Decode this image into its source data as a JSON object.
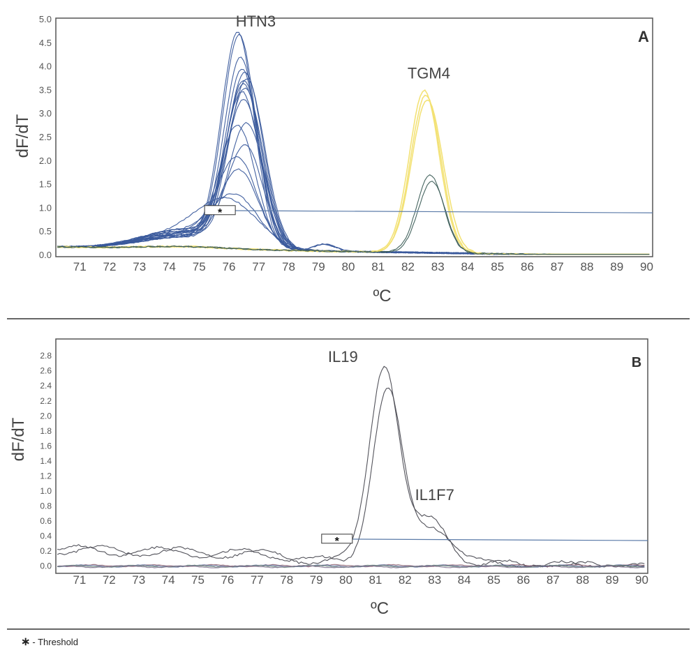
{
  "legend": {
    "symbol": "∗",
    "text": "- Threshold"
  },
  "chart_data": [
    {
      "type": "line",
      "panel_label": "A",
      "xlabel": "ºC",
      "ylabel": "dF/dT",
      "xlim": [
        70.2,
        90.2
      ],
      "ylim": [
        0,
        5.0
      ],
      "xticks": [
        71,
        72,
        73,
        74,
        75,
        76,
        77,
        78,
        79,
        80,
        81,
        82,
        83,
        84,
        85,
        86,
        87,
        88,
        89,
        90
      ],
      "yticks": [
        0.0,
        0.5,
        1.0,
        1.5,
        2.0,
        2.5,
        3.0,
        3.5,
        4.0,
        4.5,
        5.0
      ],
      "ytick_format": 1,
      "threshold": {
        "x_start": 75.2,
        "x_end": 90.2,
        "y_start": 0.95,
        "y_end": 0.9,
        "marker_x": 75.7,
        "marker": "*"
      },
      "annotations": [
        {
          "text": "HTN3",
          "x": 76.9,
          "y": 4.85
        },
        {
          "text": "TGM4",
          "x": 82.7,
          "y": 3.75
        }
      ],
      "colors": {
        "blue": "#3a5a9c",
        "yellow": "#f2e070",
        "teal": "#3d5e58"
      },
      "series": [
        {
          "group": "HTN3",
          "color": "blue",
          "peaks": [
            {
              "center": 76.3,
              "height": 4.5,
              "width": 0.55
            },
            {
              "center": 76.35,
              "height": 4.45,
              "width": 0.55
            },
            {
              "center": 76.4,
              "height": 3.95,
              "width": 0.55
            },
            {
              "center": 76.45,
              "height": 3.7,
              "width": 0.55
            },
            {
              "center": 76.55,
              "height": 3.62,
              "width": 0.6
            },
            {
              "center": 76.6,
              "height": 3.55,
              "width": 0.6
            },
            {
              "center": 76.5,
              "height": 3.5,
              "width": 0.58
            },
            {
              "center": 76.5,
              "height": 3.4,
              "width": 0.6
            },
            {
              "center": 76.55,
              "height": 3.3,
              "width": 0.6
            },
            {
              "center": 76.45,
              "height": 3.2,
              "width": 0.58
            },
            {
              "center": 76.5,
              "height": 3.1,
              "width": 0.6
            },
            {
              "center": 76.6,
              "height": 2.6,
              "width": 0.6
            },
            {
              "center": 76.3,
              "height": 2.5,
              "width": 0.6
            },
            {
              "center": 76.55,
              "height": 2.1,
              "width": 0.6
            },
            {
              "center": 76.3,
              "height": 1.8,
              "width": 0.65
            },
            {
              "center": 76.35,
              "height": 1.6,
              "width": 0.65
            },
            {
              "center": 76.2,
              "height": 1.05,
              "width": 0.8
            },
            {
              "center": 76.0,
              "height": 0.9,
              "width": 1.0
            }
          ]
        },
        {
          "group": "TGM4",
          "color": "yellow",
          "peaks": [
            {
              "center": 82.55,
              "height": 3.45,
              "width": 0.5
            },
            {
              "center": 82.6,
              "height": 3.35,
              "width": 0.5
            },
            {
              "center": 82.65,
              "height": 3.25,
              "width": 0.52
            }
          ]
        },
        {
          "group": "TGM4",
          "color": "teal",
          "peaks": [
            {
              "center": 82.75,
              "height": 1.65,
              "width": 0.45
            },
            {
              "center": 82.8,
              "height": 1.52,
              "width": 0.45
            }
          ]
        }
      ]
    },
    {
      "type": "line",
      "panel_label": "B",
      "xlabel": "ºC",
      "ylabel": "dF/dT",
      "xlim": [
        70.2,
        90.2
      ],
      "ylim": [
        -0.05,
        2.95
      ],
      "xticks": [
        71,
        72,
        73,
        74,
        75,
        76,
        77,
        78,
        79,
        80,
        81,
        82,
        83,
        84,
        85,
        86,
        87,
        88,
        89,
        90
      ],
      "yticks": [
        0.0,
        0.2,
        0.4,
        0.6,
        0.8,
        1.0,
        1.2,
        1.4,
        1.6,
        1.8,
        2.0,
        2.2,
        2.4,
        2.6,
        2.8
      ],
      "ytick_format": 1,
      "threshold": {
        "x_start": 79.5,
        "x_end": 90.2,
        "y_start": 0.36,
        "y_end": 0.34,
        "marker_x": 79.7,
        "marker": "*"
      },
      "annotations": [
        {
          "text": "IL19",
          "x": 79.9,
          "y": 2.72
        },
        {
          "text": "IL1F7",
          "x": 83.0,
          "y": 0.88
        }
      ],
      "colors": {
        "gray": "#4a4a52",
        "base": "#6a6a78"
      },
      "series": [
        {
          "group": "IL19",
          "color": "gray",
          "peaks": [
            {
              "center": 81.3,
              "height": 2.65,
              "width": 0.5
            },
            {
              "center": 82.9,
              "height": 0.55,
              "width": 0.6
            }
          ]
        },
        {
          "group": "IL1F7",
          "color": "gray",
          "peaks": [
            {
              "center": 81.4,
              "height": 2.3,
              "width": 0.5
            },
            {
              "center": 83.0,
              "height": 0.5,
              "width": 0.6
            }
          ]
        },
        {
          "group": "baseline",
          "color": "base",
          "peaks": []
        }
      ]
    }
  ]
}
